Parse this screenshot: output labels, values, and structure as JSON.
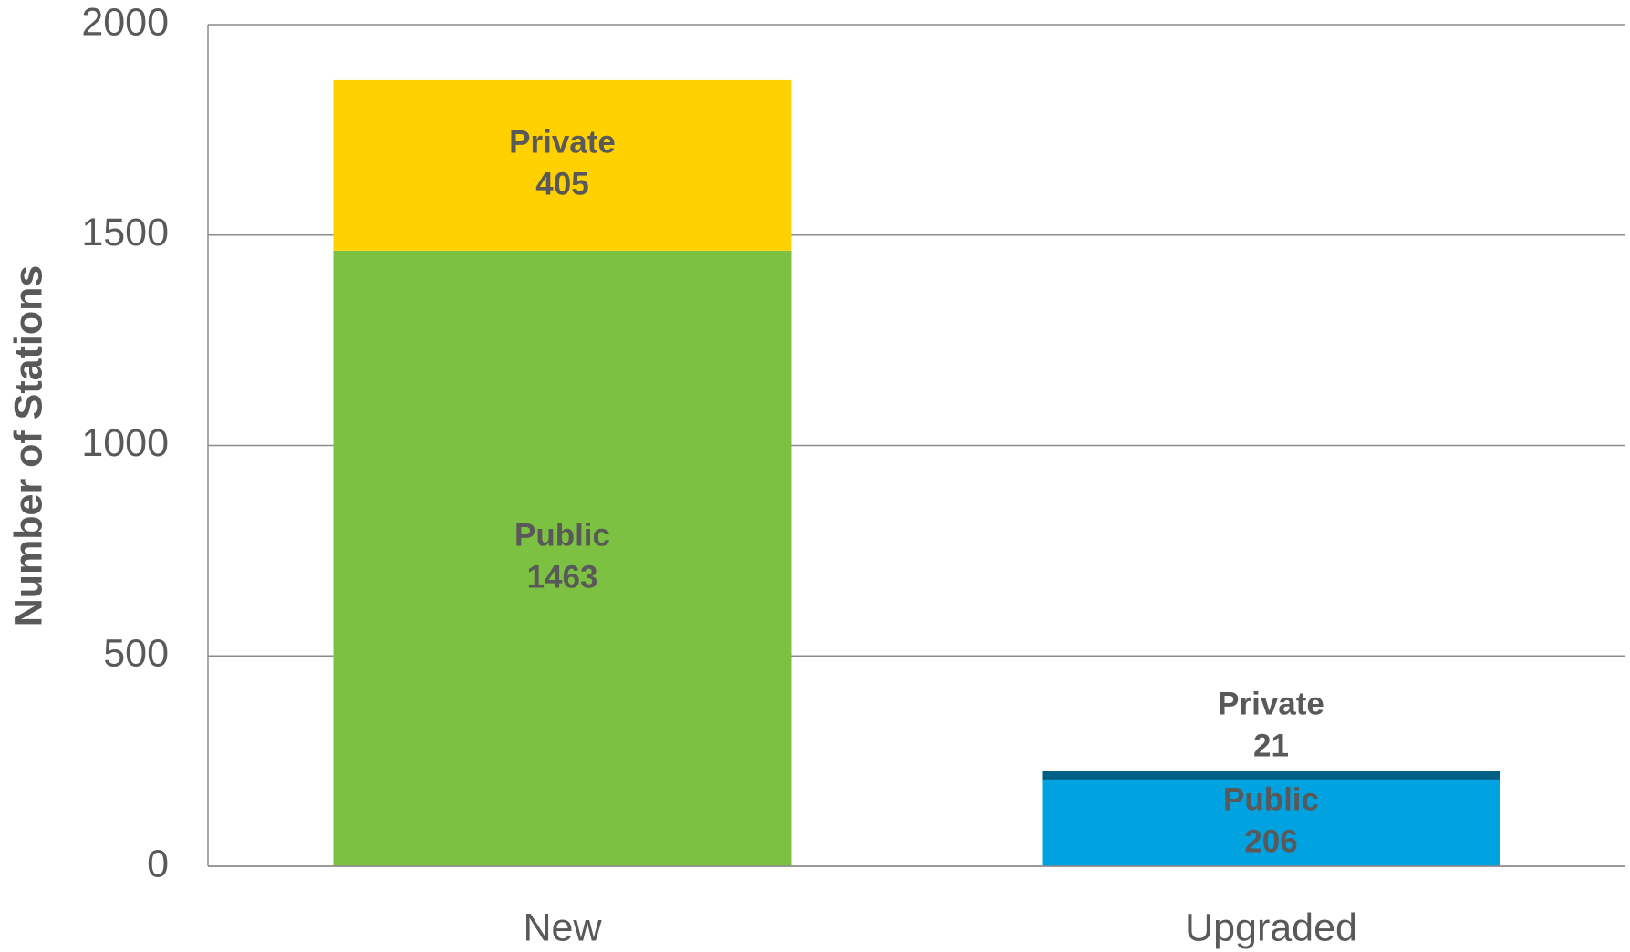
{
  "chart_data": {
    "type": "stacked_bar",
    "y_label": "Number of Stations",
    "categories": [
      "New",
      "Upgraded"
    ],
    "series": [
      {
        "name": "Public",
        "colors": [
          "#7dc142",
          "#00a3e0"
        ],
        "values": [
          1463,
          206
        ]
      },
      {
        "name": "Private",
        "colors": [
          "#ffd100",
          "#005f86"
        ],
        "values": [
          405,
          21
        ]
      }
    ],
    "ylim": [
      0,
      2000
    ],
    "yticks": [
      0,
      500,
      1000,
      1500,
      2000
    ],
    "grid": true
  }
}
